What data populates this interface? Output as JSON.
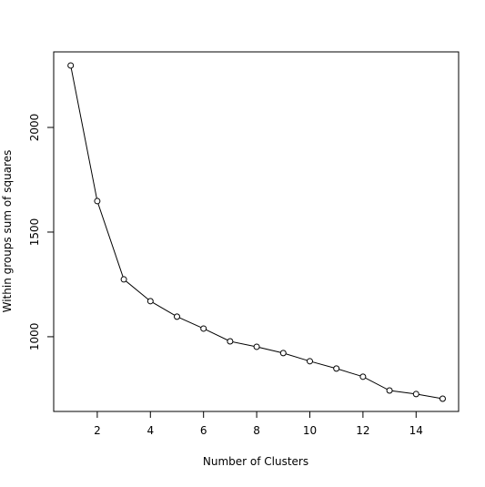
{
  "chart_data": {
    "type": "line",
    "x_label": "Number of Clusters",
    "y_label": "Within groups sum of squares",
    "x": [
      1,
      2,
      3,
      4,
      5,
      6,
      7,
      8,
      9,
      10,
      11,
      12,
      13,
      14,
      15
    ],
    "values": [
      2296,
      1648,
      1274,
      1170,
      1096,
      1039,
      978,
      952,
      922,
      883,
      848,
      809,
      743,
      726,
      704
    ],
    "color": "#000000",
    "xlim": [
      0.36,
      15.6
    ],
    "ylim": [
      643,
      2361
    ],
    "xticks": [
      2,
      4,
      6,
      8,
      10,
      12,
      14
    ],
    "yticks": [
      1000,
      1500,
      2000
    ]
  }
}
